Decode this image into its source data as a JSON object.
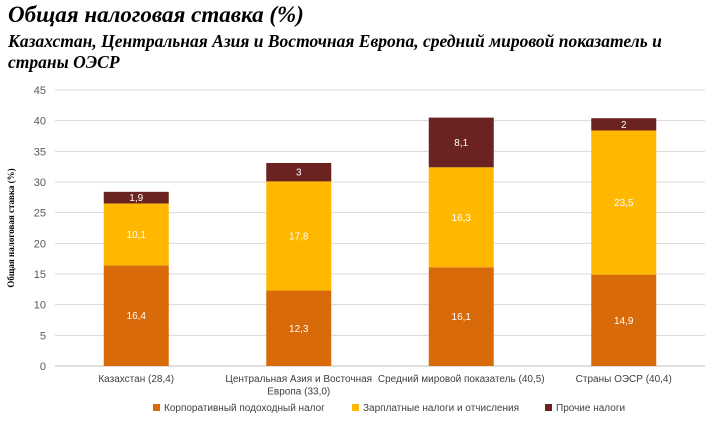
{
  "title": "Общая налоговая ставка (%)",
  "subtitle": "Казахстан, Центральная Азия и Восточная Европа, средний мировой показатель и страны ОЭСР",
  "chart_data": {
    "type": "bar",
    "stacked": true,
    "ylabel": "Общая налоговая ставка (%)",
    "ylim": [
      0,
      45
    ],
    "yticks": [
      0,
      5,
      10,
      15,
      20,
      25,
      30,
      35,
      40,
      45
    ],
    "grid": true,
    "legend_position": "bottom",
    "categories": [
      [
        "Казахстан (28,4)"
      ],
      [
        "Центральная Азия и Восточная",
        "Европа (33,0)"
      ],
      [
        "Средний мировой показатель (40,5)"
      ],
      [
        "Страны ОЭСР (40,4)"
      ]
    ],
    "series": [
      {
        "name": "Корпоративный подоходный налог",
        "color": "#D86A0A",
        "values": [
          16.4,
          12.3,
          16.1,
          14.9
        ],
        "labels": [
          "16,4",
          "12,3",
          "16,1",
          "14,9"
        ]
      },
      {
        "name": "Зарплатные налоги и отчисления",
        "color": "#FFB700",
        "values": [
          10.1,
          17.8,
          16.3,
          23.5
        ],
        "labels": [
          "10,1",
          "17,8",
          "16,3",
          "23,5"
        ]
      },
      {
        "name": "Прочие налоги",
        "color": "#6B2322",
        "values": [
          1.9,
          3,
          8.1,
          2
        ],
        "labels": [
          "1,9",
          "3",
          "8,1",
          "2"
        ]
      }
    ]
  }
}
